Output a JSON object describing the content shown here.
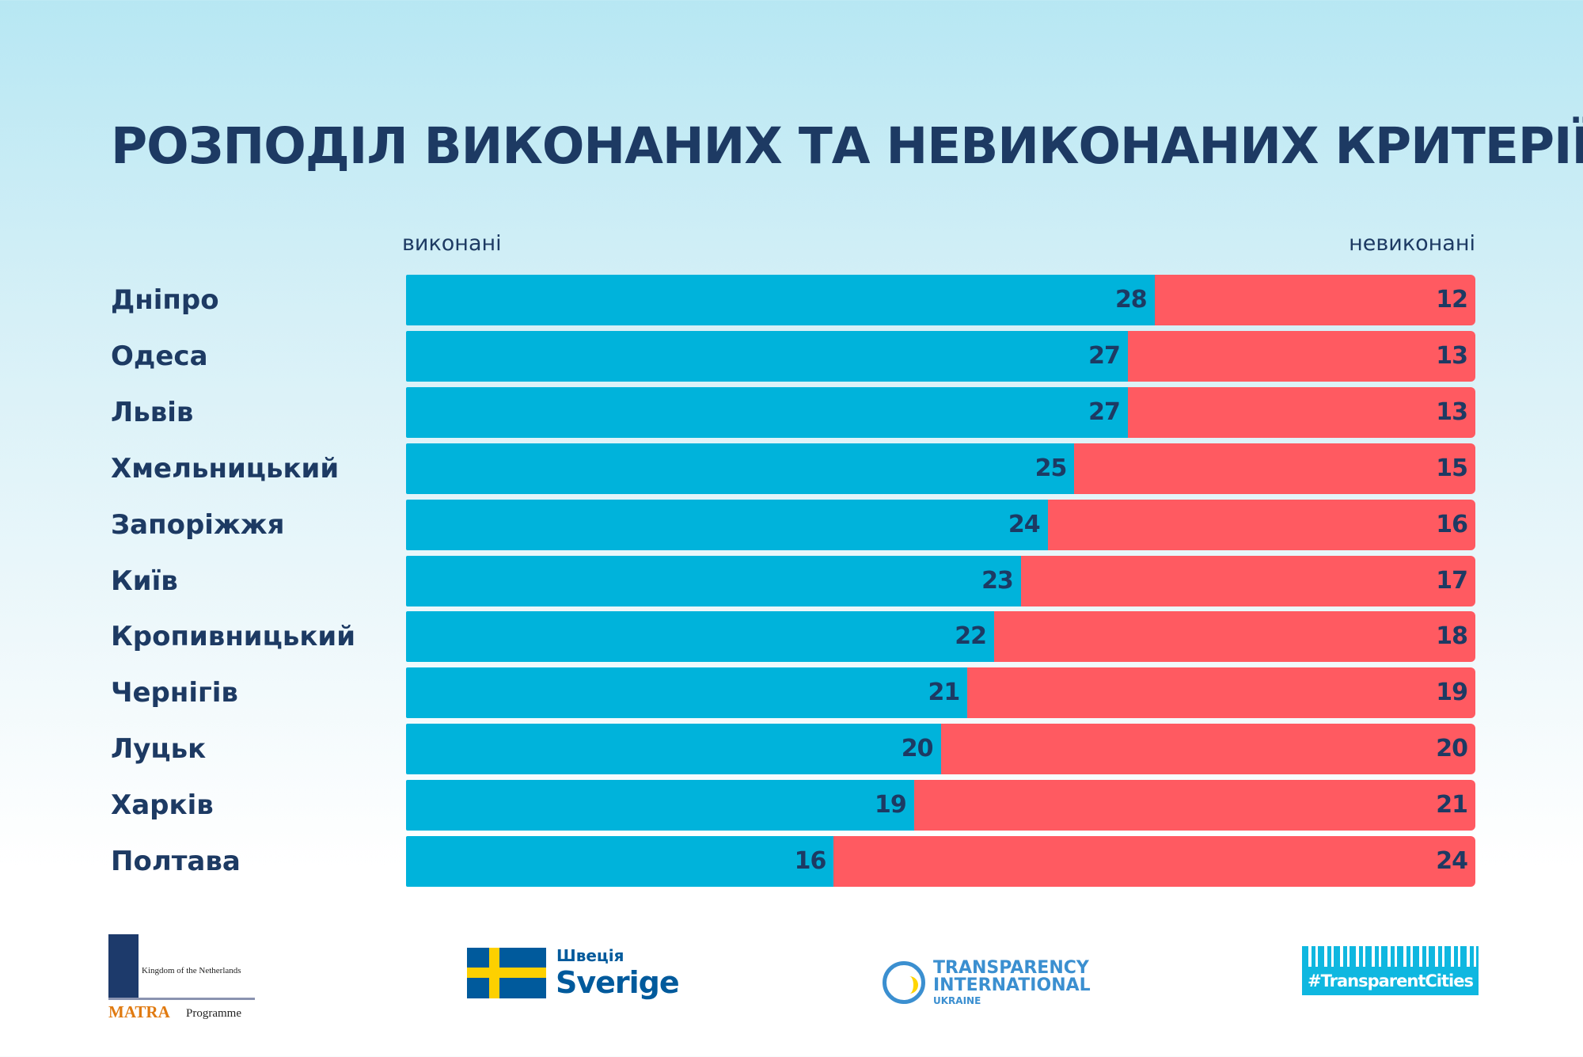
{
  "chart_data": {
    "type": "bar",
    "stacked": true,
    "orientation": "horizontal",
    "title": "РОЗПОДІЛ ВИКОНАНИХ ТА НЕВИКОНАНИХ КРИТЕРІЇВ",
    "categories": [
      "Дніпро",
      "Одеса",
      "Львів",
      "Хмельницький",
      "Запоріжжя",
      "Київ",
      "Кропивницький",
      "Чернігів",
      "Луцьк",
      "Харків",
      "Полтава"
    ],
    "series": [
      {
        "name": "виконані",
        "color": "#00b3db",
        "values": [
          28,
          27,
          27,
          25,
          24,
          23,
          22,
          21,
          20,
          19,
          16
        ]
      },
      {
        "name": "невиконані",
        "color": "#ff5a61",
        "values": [
          12,
          13,
          13,
          15,
          16,
          17,
          18,
          19,
          20,
          21,
          24
        ]
      }
    ],
    "xlim": [
      0,
      40
    ],
    "grid": false,
    "legend_placement": "top"
  },
  "logos": {
    "netherlands": {
      "text": "Kingdom of the Netherlands",
      "matra": "MATRA",
      "programme": "Programme"
    },
    "sweden": {
      "ua": "Швеція",
      "name": "Sverige"
    },
    "ti": {
      "line1": "TRANSPARENCY",
      "line2": "INTERNATIONAL",
      "line3": "UKRAINE"
    },
    "tc": {
      "hashtag": "#TransparentCities"
    }
  }
}
